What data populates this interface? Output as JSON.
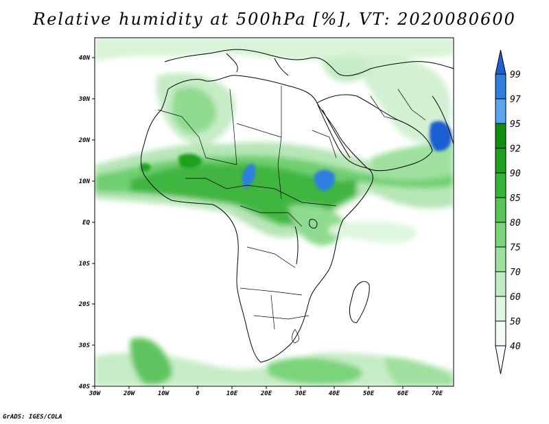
{
  "title": "Relative humidity at 500hPa [%], VT: 2020080600",
  "footer": "GrADS: IGES/COLA",
  "axes": {
    "lon_ticks": [
      "30W",
      "20W",
      "10W",
      "0",
      "10E",
      "20E",
      "30E",
      "40E",
      "50E",
      "60E",
      "70E"
    ],
    "lat_ticks": [
      "40N",
      "30N",
      "20N",
      "10N",
      "EQ",
      "10S",
      "20S",
      "30S",
      "40S"
    ]
  },
  "colorbar": {
    "labels": [
      "99",
      "97",
      "95",
      "92",
      "90",
      "85",
      "80",
      "75",
      "70",
      "60",
      "50",
      "40"
    ],
    "colors": [
      "#1f5fd0",
      "#2f7ee0",
      "#5aa5ee",
      "#0e8f0e",
      "#1fa11f",
      "#35b535",
      "#56c656",
      "#7ad47a",
      "#9fe09f",
      "#c2ecc2",
      "#dff6df",
      "#f2fcf2",
      "#ffffff"
    ]
  },
  "map": {
    "region": "Africa",
    "lon_range": [
      -30,
      75
    ],
    "lat_range": [
      -40,
      45
    ],
    "field": "relative humidity at 500hPa",
    "units": "%"
  }
}
